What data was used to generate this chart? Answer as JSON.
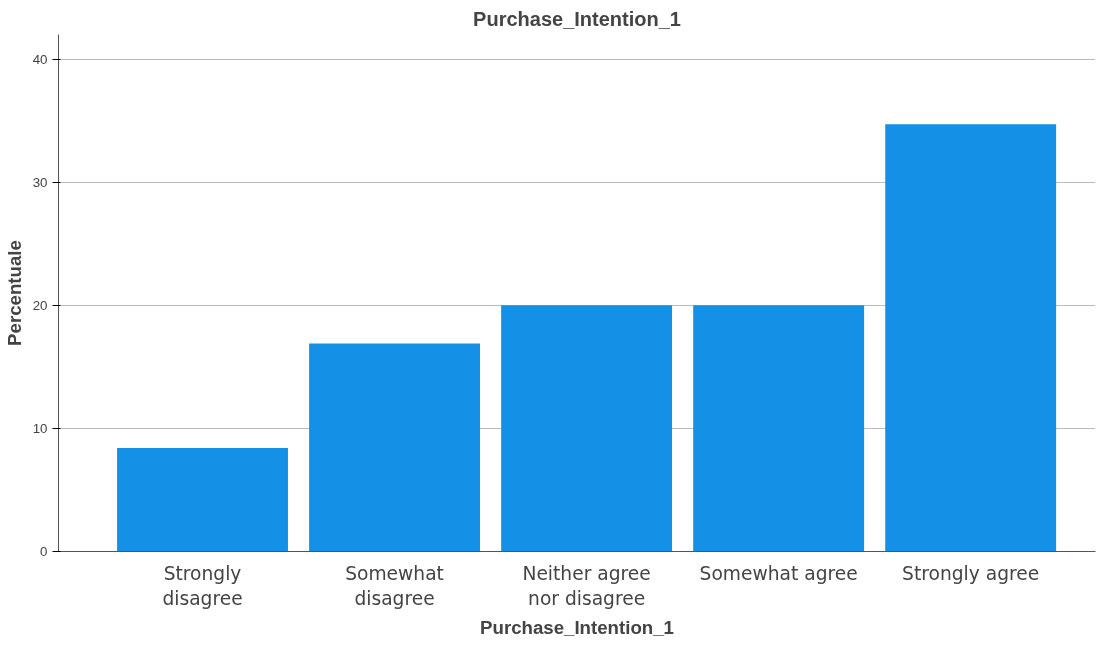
{
  "chart_data": {
    "type": "bar",
    "title": "Purchase_Intention_1",
    "xlabel": "Purchase_Intention_1",
    "ylabel": "Percentuale",
    "categories": [
      "Strongly\ndisagree",
      "Somewhat\ndisagree",
      "Neither agree\nnor disagree",
      "Somewhat agree",
      "Strongly agree"
    ],
    "values": [
      8.4,
      16.9,
      20.0,
      20.0,
      34.7
    ],
    "color": "#1491e6",
    "ylim": [
      0,
      42
    ],
    "yticks": [
      0,
      10,
      20,
      30,
      40
    ],
    "grid": "y"
  }
}
